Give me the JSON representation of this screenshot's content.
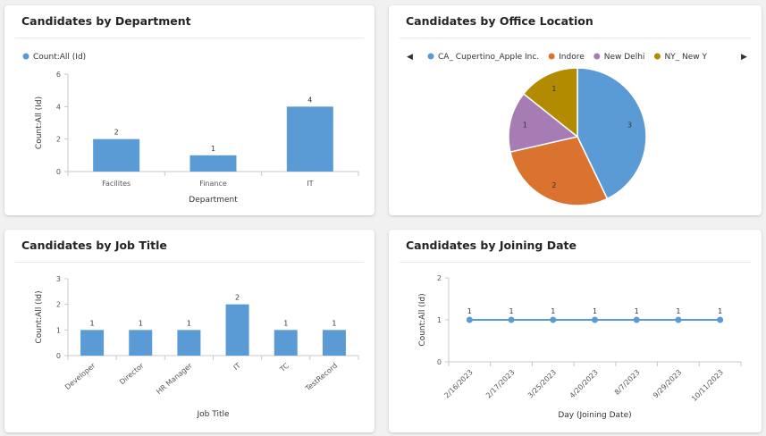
{
  "colors": {
    "bar": "#5b9bd5",
    "pie": [
      "#5b9bd5",
      "#d9732f",
      "#a77bb4",
      "#b38b00"
    ]
  },
  "cards": {
    "department": {
      "title": "Candidates by Department"
    },
    "office": {
      "title": "Candidates by Office Location"
    },
    "job_title": {
      "title": "Candidates by Job Title"
    },
    "joining_date": {
      "title": "Candidates by Joining Date"
    }
  },
  "nav": {
    "prev_icon": "chevron-left-icon",
    "next_icon": "chevron-right-icon",
    "prev_glyph": "◀",
    "next_glyph": "▶"
  },
  "chart_data": [
    {
      "id": "department",
      "type": "bar",
      "title": "Candidates by Department",
      "legend": "Count:All (Id)",
      "legend_position": "top-left",
      "categories": [
        "Facilites",
        "Finance",
        "IT"
      ],
      "values": [
        2,
        1,
        4
      ],
      "ylim": [
        0,
        6
      ],
      "yticks": [
        0,
        2,
        4,
        6
      ],
      "xlabel": "Department",
      "ylabel": "Count:All (Id)"
    },
    {
      "id": "office",
      "type": "pie",
      "title": "Candidates by Office Location",
      "legend_position": "top",
      "categories": [
        "CA_ Cupertino_Apple Inc.",
        "Indore",
        "New Delhi",
        "NY_ New Y"
      ],
      "values": [
        3,
        2,
        1,
        1
      ]
    },
    {
      "id": "job_title",
      "type": "bar",
      "title": "Candidates by Job Title",
      "categories": [
        "Developer",
        "Director",
        "HR Manager",
        "IT",
        "TC",
        "TestRecord"
      ],
      "values": [
        1,
        1,
        1,
        2,
        1,
        1
      ],
      "ylim": [
        0,
        3
      ],
      "yticks": [
        0,
        1,
        2,
        3
      ],
      "xlabel": "Job Title",
      "ylabel": "Count:All (Id)"
    },
    {
      "id": "joining_date",
      "type": "line",
      "title": "Candidates by Joining Date",
      "categories": [
        "2/16/2023",
        "2/17/2023",
        "3/25/2023",
        "4/20/2023",
        "8/7/2023",
        "9/29/2023",
        "10/11/2023"
      ],
      "values": [
        1,
        1,
        1,
        1,
        1,
        1,
        1
      ],
      "ylim": [
        0,
        2
      ],
      "yticks": [
        0,
        1,
        2
      ],
      "xlabel": "Day (Joining Date)",
      "ylabel": "Count:All (Id)"
    }
  ]
}
